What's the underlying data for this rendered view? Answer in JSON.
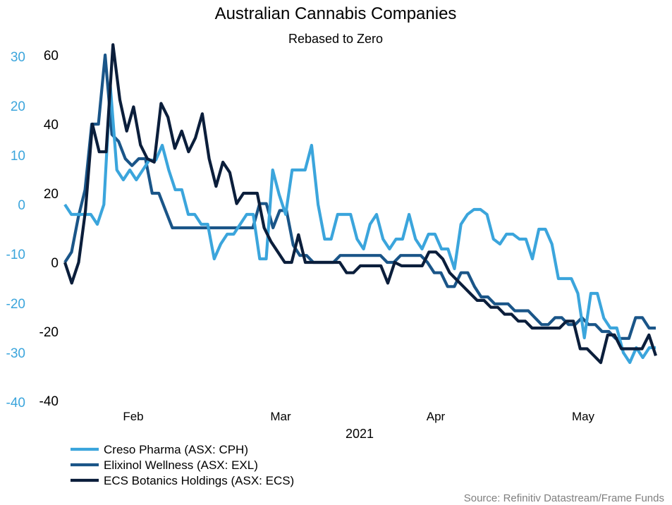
{
  "chart_data": {
    "type": "line",
    "title": "Australian Cannabis Companies",
    "subtitle": "Rebased to Zero",
    "xlabel": "2021",
    "x_ticks": [
      "Feb",
      "Mar",
      "Apr",
      "May"
    ],
    "y_left": {
      "ticks": [
        30,
        20,
        10,
        0,
        -10,
        -20,
        -30,
        -40
      ],
      "range": [
        -40,
        30
      ],
      "color": "#3ba5dc",
      "series": [
        "Creso Pharma (ASX: CPH)"
      ]
    },
    "y_right": {
      "ticks": [
        60,
        40,
        20,
        0,
        -20,
        -40
      ],
      "range": [
        -40,
        60
      ],
      "color": "#000000",
      "series": [
        "Elixinol Wellness (ASX: EXL)",
        "ECS Botanics Holdings (ASX: ECS)"
      ]
    },
    "series": [
      {
        "name": "Creso Pharma (ASX: CPH)",
        "axis": "left",
        "color": "#3ba5dc",
        "values": [
          0,
          -2,
          -2,
          -2,
          -2,
          -4,
          0,
          24,
          7,
          5,
          7,
          5,
          7,
          9,
          9,
          12,
          7,
          3,
          3,
          -2,
          -2,
          -4,
          -4,
          -11,
          -8,
          -6,
          -6,
          -4,
          -2,
          -2,
          -11,
          -11,
          7,
          2,
          -2,
          7,
          7,
          7,
          12,
          0,
          -7,
          -7,
          -2,
          -2,
          -2,
          -7,
          -9,
          -4,
          -2,
          -7,
          -9,
          -7,
          -7,
          -2,
          -7,
          -9,
          -6,
          -6,
          -9,
          -9,
          -13,
          -4,
          -2,
          -1,
          -1,
          -2,
          -7,
          -8,
          -6,
          -6,
          -7,
          -7,
          -11,
          -5,
          -5,
          -8,
          -15,
          -15,
          -15,
          -18,
          -27,
          -18,
          -18,
          -23,
          -25,
          -25,
          -30,
          -32,
          -29,
          -31,
          -29,
          -29
        ]
      },
      {
        "name": "Elixinol Wellness (ASX: EXL)",
        "axis": "right",
        "color": "#1a5588",
        "values": [
          0,
          3,
          13,
          21,
          40,
          40,
          60,
          37,
          35,
          30,
          28,
          30,
          30,
          20,
          20,
          15,
          10,
          10,
          10,
          10,
          10,
          10,
          10,
          10,
          10,
          10,
          10,
          10,
          10,
          17,
          17,
          10,
          15,
          15,
          5,
          2,
          2,
          0,
          0,
          0,
          0,
          2,
          2,
          2,
          2,
          2,
          2,
          2,
          0,
          0,
          2,
          2,
          2,
          2,
          0,
          -3,
          -3,
          -7,
          -7,
          -3,
          -3,
          -7,
          -10,
          -10,
          -12,
          -12,
          -12,
          -14,
          -14,
          -14,
          -16,
          -18,
          -18,
          -16,
          -16,
          -18,
          -18,
          -16,
          -18,
          -18,
          -20,
          -20,
          -22,
          -22,
          -22,
          -16,
          -16,
          -19,
          -19
        ]
      },
      {
        "name": "ECS Botanics Holdings (ASX: ECS)",
        "axis": "right",
        "color": "#0b1e3b",
        "values": [
          0,
          -6,
          0,
          15,
          40,
          32,
          32,
          63,
          47,
          38,
          45,
          34,
          30,
          29,
          46,
          42,
          33,
          38,
          32,
          36,
          43,
          30,
          22,
          29,
          26,
          17,
          20,
          20,
          20,
          10,
          6,
          3,
          0,
          0,
          8,
          0,
          0,
          0,
          0,
          0,
          0,
          -3,
          -3,
          -1,
          -1,
          -1,
          -1,
          -6,
          0,
          -1,
          -1,
          -1,
          -1,
          3,
          3,
          1,
          -3,
          -5,
          -7,
          -9,
          -11,
          -11,
          -13,
          -13,
          -15,
          -15,
          -17,
          -17,
          -19,
          -19,
          -19,
          -19,
          -19,
          -17,
          -17,
          -25,
          -25,
          -27,
          -29,
          -21,
          -21,
          -25,
          -25,
          -25,
          -25,
          -21,
          -27
        ]
      }
    ],
    "legend_position": "bottom-left"
  },
  "source": "Source: Refinitiv Datastream/Frame Funds"
}
